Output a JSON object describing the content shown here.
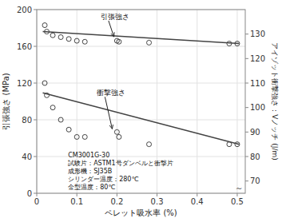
{
  "chart_data": {
    "type": "scatter",
    "xlabel": "ペレット吸水率 (%)",
    "ylabel": "引張強さ (MPa)",
    "y2label": "アイゾット衝撃強さ：Vノッチ (J/m)",
    "xlim": [
      0,
      0.52
    ],
    "ylim": [
      0,
      200
    ],
    "y2lim": [
      65,
      140
    ],
    "xticks": [
      0,
      0.1,
      0.2,
      0.3,
      0.4,
      0.5
    ],
    "yticks": [
      0,
      40,
      80,
      120,
      160,
      200
    ],
    "y2ticks": [
      70,
      80,
      90,
      100,
      110,
      120,
      130
    ],
    "grid": true,
    "series": [
      {
        "type": "line",
        "color": "#444444",
        "line_style": "solid",
        "x": [
          0.015,
          0.505
        ],
        "values": [
          176,
          163
        ]
      },
      {
        "type": "scatter",
        "color": "#444444",
        "marker": "open-circle",
        "x": [
          0.02,
          0.025,
          0.04,
          0.06,
          0.08,
          0.1,
          0.12,
          0.2,
          0.205,
          0.28,
          0.48,
          0.5
        ],
        "values": [
          183,
          176,
          172,
          170,
          168,
          166,
          165,
          166,
          165,
          164,
          163,
          163
        ]
      },
      {
        "type": "line",
        "color": "#444444",
        "line_style": "solid",
        "axis": "y2",
        "x": [
          0.015,
          0.505
        ],
        "values": [
          106,
          85
        ]
      },
      {
        "type": "scatter",
        "color": "#444444",
        "marker": "open-circle",
        "axis": "y2",
        "x": [
          0.02,
          0.025,
          0.04,
          0.06,
          0.08,
          0.1,
          0.12,
          0.2,
          0.205,
          0.28,
          0.48,
          0.5
        ],
        "values": [
          110,
          105,
          100,
          95,
          91,
          88,
          88,
          90,
          88,
          85,
          85,
          85
        ]
      }
    ],
    "annotations": [
      {
        "text": "引張強さ",
        "x": 0.195,
        "y": 167
      },
      {
        "text": "衝撃強さ",
        "x": 0.19,
        "y": 90,
        "axis": "y2"
      },
      {
        "text": "CM3001G-30\n試験片：ASTM1号ダンベルと衝撃片\n成形機：SJ35B\nシリンダー温度：280℃\n金型温度：80℃"
      },
      {
        "text": "∼"
      }
    ]
  }
}
